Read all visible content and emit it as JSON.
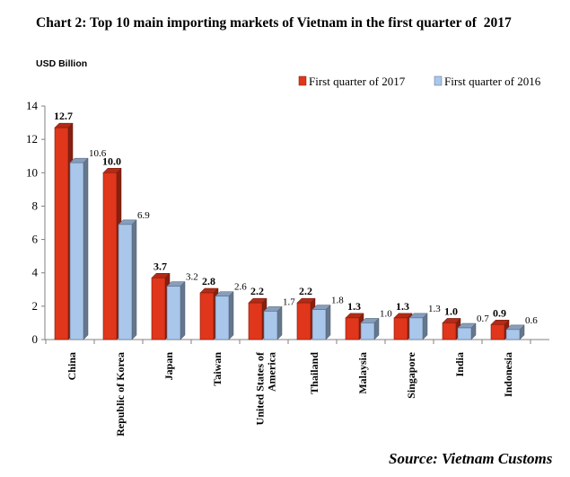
{
  "chart_data": {
    "type": "bar",
    "title": "Chart 2: Top 10 main importing markets of Vietnam in the first quarter of  2017",
    "ylabel": "USD Billion",
    "xlabel": "",
    "ylim": [
      0,
      14
    ],
    "yticks": [
      "0",
      "2",
      "4",
      "6",
      "8",
      "10",
      "12",
      "14"
    ],
    "categories": [
      [
        "China"
      ],
      [
        "Republic of Korea"
      ],
      [
        "Japan"
      ],
      [
        "Taiwan"
      ],
      [
        "United States of",
        "America"
      ],
      [
        "Thailand"
      ],
      [
        "Malaysia"
      ],
      [
        "Singapore"
      ],
      [
        "India"
      ],
      [
        "Indonesia"
      ]
    ],
    "series": [
      {
        "name": "First quarter of 2017",
        "color": "#e0361b",
        "values": [
          12.7,
          10.0,
          3.7,
          2.8,
          2.2,
          2.2,
          1.3,
          1.3,
          1.0,
          0.9
        ],
        "labels": [
          "12.7",
          "10.0",
          "3.7",
          "2.8",
          "2.2",
          "2.2",
          "1.3",
          "1.3",
          "1.0",
          "0.9"
        ]
      },
      {
        "name": "First quarter of 2016",
        "color": "#a9c6eb",
        "values": [
          10.6,
          6.9,
          3.2,
          2.6,
          1.7,
          1.8,
          1.0,
          1.3,
          0.7,
          0.6
        ],
        "labels": [
          "10.6",
          "6.9",
          "3.2",
          "2.6",
          "1.7",
          "1.8",
          "1.0",
          "1.3",
          "0.7",
          "0.6"
        ]
      }
    ],
    "legend_position": "top-right",
    "grid": false,
    "source": "Source: Vietnam Customs"
  }
}
